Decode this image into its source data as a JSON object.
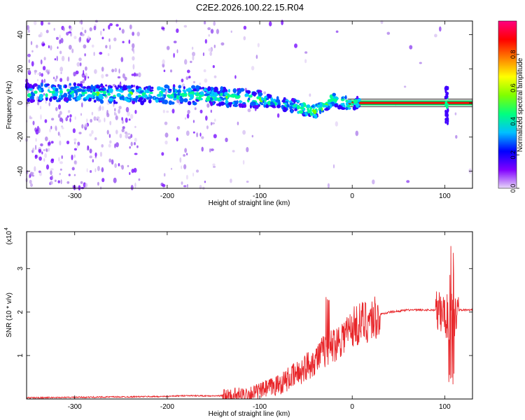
{
  "title": "C2E2.2026.100.22.15.R04",
  "chart_data": [
    {
      "type": "heatmap",
      "xlabel": "Height of straight line (km)",
      "ylabel": "Frequency (Hz)",
      "xlim": [
        -352,
        130
      ],
      "ylim": [
        -50,
        48
      ],
      "xticks": [
        -300,
        -200,
        -100,
        0,
        100
      ],
      "yticks": [
        -40,
        -20,
        0,
        20,
        40
      ],
      "colorbar": {
        "label": "Normalized spectral amplitude",
        "range": [
          0,
          1
        ],
        "ticks": [
          "0.0",
          "0.2",
          "0.4",
          "0.6",
          "0.8"
        ],
        "colors": [
          "#e8d8f8",
          "#8000ff",
          "#0000ff",
          "#00c0ff",
          "#00ff80",
          "#80ff00",
          "#ffff00",
          "#ff8000",
          "#ff0000",
          "#ff0080"
        ]
      },
      "ridge": {
        "x": [
          -352,
          -300,
          -250,
          -200,
          -150,
          -100,
          -80,
          -60,
          -40,
          -30,
          -20,
          -10,
          0,
          130
        ],
        "freq": [
          6,
          6,
          5,
          5,
          4,
          2,
          0,
          -2,
          -5,
          -1,
          2,
          0,
          0,
          0
        ]
      }
    },
    {
      "type": "line",
      "xlabel": "Height of straight line (km)",
      "ylabel": "SNR (10 * v/v)",
      "yscale_label": "(x10",
      "yscale_exp": "4",
      "xlim": [
        -352,
        130
      ],
      "ylim": [
        0,
        3.85
      ],
      "xticks": [
        -300,
        -200,
        -100,
        0,
        100
      ],
      "yticks": [
        1,
        2,
        3
      ],
      "color": "#e8262a",
      "x": [
        -352,
        -300,
        -250,
        -200,
        -180,
        -150,
        -120,
        -100,
        -80,
        -60,
        -40,
        -30,
        -20,
        -10,
        0,
        20,
        40,
        60,
        80,
        95,
        100,
        105,
        108,
        110,
        115,
        130
      ],
      "y": [
        0.03,
        0.04,
        0.05,
        0.06,
        0.08,
        0.07,
        0.1,
        0.2,
        0.35,
        0.6,
        0.95,
        1.15,
        1.3,
        1.5,
        1.7,
        1.9,
        2.0,
        2.05,
        2.05,
        2.05,
        2.0,
        1.9,
        2.3,
        1.95,
        2.05,
        2.05
      ]
    }
  ]
}
